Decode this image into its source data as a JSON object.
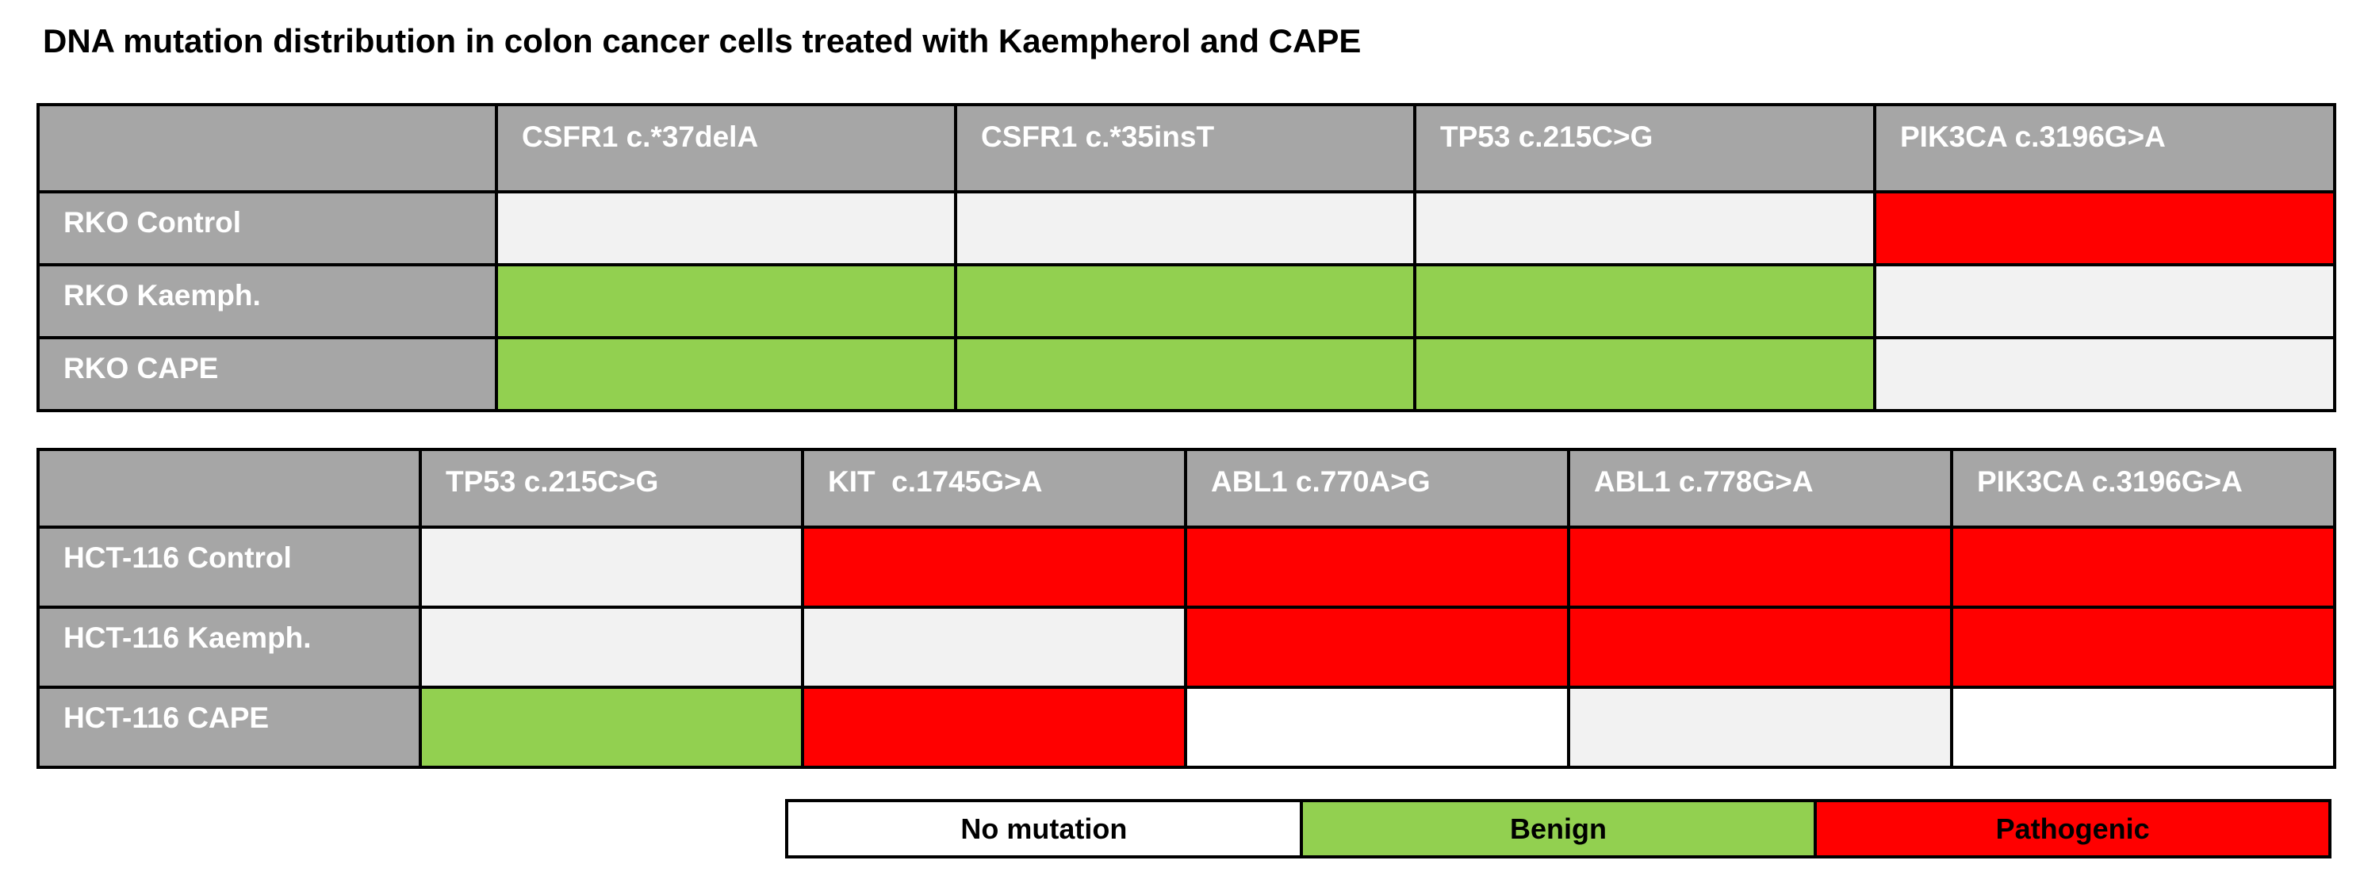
{
  "chart_data": {
    "type": "table",
    "title": "DNA mutation distribution in colon cancer cells treated with Kaempherol and CAPE",
    "colors": {
      "none": "#f2f2f2",
      "none_white": "#ffffff",
      "benign": "#92d050",
      "pathogenic": "#ff0000",
      "header": "#a6a6a6"
    },
    "tables": [
      {
        "id": "rko",
        "columns": [
          "CSFR1 c.*37delA",
          "CSFR1 c.*35insT",
          "TP53 c.215C>G",
          "PIK3CA c.3196G>A"
        ],
        "rows": [
          {
            "label": "RKO Control",
            "values": [
              "none",
              "none",
              "none",
              "pathogenic"
            ]
          },
          {
            "label": "RKO Kaemph.",
            "values": [
              "benign",
              "benign",
              "benign",
              "none"
            ]
          },
          {
            "label": "RKO CAPE",
            "values": [
              "benign",
              "benign",
              "benign",
              "none"
            ]
          }
        ]
      },
      {
        "id": "hct",
        "columns": [
          "TP53 c.215C>G",
          "KIT  c.1745G>A",
          "ABL1 c.770A>G",
          "ABL1 c.778G>A",
          "PIK3CA c.3196G>A"
        ],
        "rows": [
          {
            "label": "HCT-116 Control",
            "values": [
              "none",
              "pathogenic",
              "pathogenic",
              "pathogenic",
              "pathogenic"
            ]
          },
          {
            "label": "HCT-116 Kaemph.",
            "values": [
              "none",
              "none",
              "pathogenic",
              "pathogenic",
              "pathogenic"
            ]
          },
          {
            "label": "HCT-116 CAPE",
            "values": [
              "benign",
              "pathogenic",
              "none_white",
              "none",
              "none_white"
            ]
          }
        ]
      }
    ],
    "legend": [
      {
        "key": "none_white",
        "label": "No mutation"
      },
      {
        "key": "benign",
        "label": "Benign"
      },
      {
        "key": "pathogenic",
        "label": "Pathogenic"
      }
    ]
  }
}
